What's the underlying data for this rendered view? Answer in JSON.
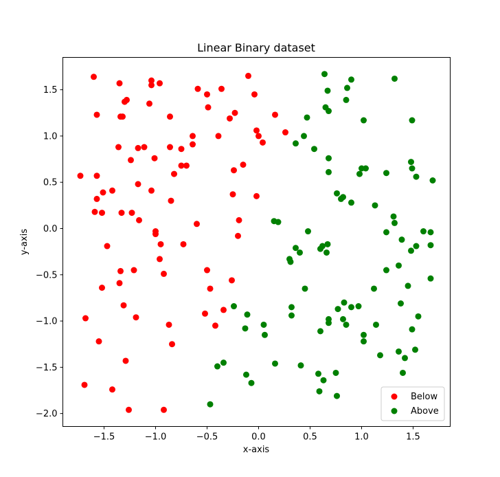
{
  "chart_data": {
    "type": "scatter",
    "title": "Linear Binary dataset",
    "xlabel": "x-axis",
    "ylabel": "y-axis",
    "xlim": [
      -1.9,
      1.86
    ],
    "ylim": [
      -2.14,
      1.85
    ],
    "xticks": [
      -1.5,
      -1.0,
      -0.5,
      0.0,
      0.5,
      1.0,
      1.5
    ],
    "yticks": [
      -2.0,
      -1.5,
      -1.0,
      -0.5,
      0.0,
      0.5,
      1.0,
      1.5
    ],
    "grid": false,
    "legend_position": "bottom-right",
    "series": [
      {
        "name": "Below",
        "color": "#ff0000",
        "points": [
          [
            -1.6,
            1.64
          ],
          [
            -1.35,
            1.57
          ],
          [
            -1.04,
            1.6
          ],
          [
            -0.96,
            1.57
          ],
          [
            -1.04,
            1.55
          ],
          [
            -0.59,
            1.51
          ],
          [
            -0.36,
            1.51
          ],
          [
            -0.1,
            1.65
          ],
          [
            -0.04,
            1.45
          ],
          [
            -0.5,
            1.45
          ],
          [
            -1.28,
            1.39
          ],
          [
            -1.3,
            1.37
          ],
          [
            -1.06,
            1.35
          ],
          [
            -0.49,
            1.31
          ],
          [
            -1.57,
            1.23
          ],
          [
            -1.34,
            1.21
          ],
          [
            -1.32,
            1.21
          ],
          [
            -0.86,
            1.21
          ],
          [
            -0.23,
            1.25
          ],
          [
            -0.28,
            1.19
          ],
          [
            0.16,
            1.23
          ],
          [
            -0.02,
            1.06
          ],
          [
            0.0,
            1.0
          ],
          [
            0.04,
            0.93
          ],
          [
            0.26,
            1.04
          ],
          [
            -0.64,
            1.0
          ],
          [
            -0.39,
            1.0
          ],
          [
            -1.36,
            0.88
          ],
          [
            -1.17,
            0.87
          ],
          [
            -1.11,
            0.88
          ],
          [
            -0.86,
            0.88
          ],
          [
            -0.75,
            0.86
          ],
          [
            -0.64,
            0.91
          ],
          [
            -1.24,
            0.74
          ],
          [
            -1.01,
            0.76
          ],
          [
            -0.75,
            0.68
          ],
          [
            -0.7,
            0.68
          ],
          [
            -0.82,
            0.59
          ],
          [
            -0.15,
            0.69
          ],
          [
            -0.24,
            0.63
          ],
          [
            -1.73,
            0.57
          ],
          [
            -1.57,
            0.57
          ],
          [
            -1.17,
            0.48
          ],
          [
            -1.42,
            0.41
          ],
          [
            -1.51,
            0.39
          ],
          [
            -1.04,
            0.41
          ],
          [
            -1.57,
            0.32
          ],
          [
            -0.85,
            0.3
          ],
          [
            -0.25,
            0.37
          ],
          [
            -0.02,
            0.35
          ],
          [
            -1.59,
            0.18
          ],
          [
            -1.52,
            0.17
          ],
          [
            -1.33,
            0.17
          ],
          [
            -1.23,
            0.17
          ],
          [
            -1.16,
            0.09
          ],
          [
            -0.6,
            0.05
          ],
          [
            -0.19,
            0.09
          ],
          [
            -0.2,
            -0.08
          ],
          [
            -1.0,
            -0.03
          ],
          [
            -1.0,
            -0.06
          ],
          [
            -1.47,
            -0.19
          ],
          [
            -0.95,
            -0.17
          ],
          [
            -0.73,
            -0.17
          ],
          [
            -1.34,
            -0.46
          ],
          [
            -1.21,
            -0.45
          ],
          [
            -0.96,
            -0.33
          ],
          [
            -0.92,
            -0.49
          ],
          [
            -0.5,
            -0.45
          ],
          [
            -1.35,
            -0.59
          ],
          [
            -1.52,
            -0.64
          ],
          [
            -0.47,
            -0.65
          ],
          [
            -0.26,
            -0.56
          ],
          [
            -1.31,
            -0.83
          ],
          [
            -1.19,
            -0.96
          ],
          [
            -0.34,
            -0.88
          ],
          [
            -0.52,
            -0.92
          ],
          [
            -0.42,
            -1.05
          ],
          [
            -1.68,
            -0.97
          ],
          [
            -0.87,
            -1.04
          ],
          [
            -1.55,
            -1.22
          ],
          [
            -0.84,
            -1.25
          ],
          [
            -1.29,
            -1.43
          ],
          [
            -1.69,
            -1.69
          ],
          [
            -1.42,
            -1.74
          ],
          [
            -1.26,
            -1.96
          ],
          [
            -0.92,
            -1.96
          ]
        ]
      },
      {
        "name": "Above",
        "color": "#008000",
        "points": [
          [
            0.64,
            1.67
          ],
          [
            0.9,
            1.61
          ],
          [
            1.32,
            1.62
          ],
          [
            0.67,
            1.49
          ],
          [
            0.86,
            1.52
          ],
          [
            0.65,
            1.31
          ],
          [
            0.68,
            1.27
          ],
          [
            0.85,
            1.39
          ],
          [
            0.47,
            1.2
          ],
          [
            1.02,
            1.17
          ],
          [
            1.49,
            1.17
          ],
          [
            0.44,
            1.0
          ],
          [
            0.36,
            0.92
          ],
          [
            0.54,
            0.86
          ],
          [
            0.68,
            0.76
          ],
          [
            1.48,
            0.72
          ],
          [
            1.0,
            0.65
          ],
          [
            1.04,
            0.65
          ],
          [
            1.49,
            0.65
          ],
          [
            0.68,
            0.61
          ],
          [
            0.98,
            0.59
          ],
          [
            1.24,
            0.6
          ],
          [
            1.53,
            0.56
          ],
          [
            1.69,
            0.52
          ],
          [
            0.76,
            0.38
          ],
          [
            0.82,
            0.34
          ],
          [
            0.8,
            0.32
          ],
          [
            0.9,
            0.28
          ],
          [
            1.13,
            0.25
          ],
          [
            1.31,
            0.13
          ],
          [
            1.32,
            0.06
          ],
          [
            0.15,
            0.08
          ],
          [
            0.19,
            0.07
          ],
          [
            0.48,
            -0.03
          ],
          [
            1.24,
            -0.04
          ],
          [
            1.6,
            -0.03
          ],
          [
            1.67,
            -0.04
          ],
          [
            1.39,
            -0.12
          ],
          [
            0.36,
            -0.21
          ],
          [
            0.6,
            -0.22
          ],
          [
            0.62,
            -0.19
          ],
          [
            0.67,
            -0.17
          ],
          [
            1.53,
            -0.19
          ],
          [
            1.67,
            -0.18
          ],
          [
            0.4,
            -0.26
          ],
          [
            0.66,
            -0.26
          ],
          [
            1.48,
            -0.24
          ],
          [
            0.3,
            -0.33
          ],
          [
            0.31,
            -0.36
          ],
          [
            1.36,
            -0.4
          ],
          [
            1.24,
            -0.45
          ],
          [
            1.67,
            -0.54
          ],
          [
            0.45,
            -0.65
          ],
          [
            1.12,
            -0.65
          ],
          [
            1.45,
            -0.62
          ],
          [
            1.38,
            -0.81
          ],
          [
            0.83,
            -0.8
          ],
          [
            0.77,
            -0.87
          ],
          [
            0.9,
            -0.85
          ],
          [
            0.97,
            -0.84
          ],
          [
            0.32,
            -0.85
          ],
          [
            -0.24,
            -0.84
          ],
          [
            0.32,
            -0.94
          ],
          [
            -0.11,
            -0.93
          ],
          [
            0.68,
            -0.98
          ],
          [
            0.68,
            -1.02
          ],
          [
            0.82,
            -0.98
          ],
          [
            0.85,
            -1.04
          ],
          [
            1.14,
            -1.04
          ],
          [
            1.55,
            -0.95
          ],
          [
            -0.13,
            -1.08
          ],
          [
            0.05,
            -1.04
          ],
          [
            0.6,
            -1.11
          ],
          [
            1.49,
            -1.09
          ],
          [
            0.06,
            -1.15
          ],
          [
            1.02,
            -1.15
          ],
          [
            1.02,
            -1.22
          ],
          [
            1.52,
            -1.31
          ],
          [
            1.18,
            -1.37
          ],
          [
            1.36,
            -1.33
          ],
          [
            1.42,
            -1.4
          ],
          [
            -0.34,
            -1.45
          ],
          [
            -0.4,
            -1.49
          ],
          [
            0.16,
            -1.46
          ],
          [
            0.41,
            -1.48
          ],
          [
            1.4,
            -1.56
          ],
          [
            -0.12,
            -1.58
          ],
          [
            -0.07,
            -1.67
          ],
          [
            0.58,
            -1.57
          ],
          [
            0.63,
            -1.64
          ],
          [
            0.75,
            -1.56
          ],
          [
            0.59,
            -1.76
          ],
          [
            0.76,
            -1.81
          ],
          [
            -0.47,
            -1.9
          ]
        ]
      }
    ]
  }
}
